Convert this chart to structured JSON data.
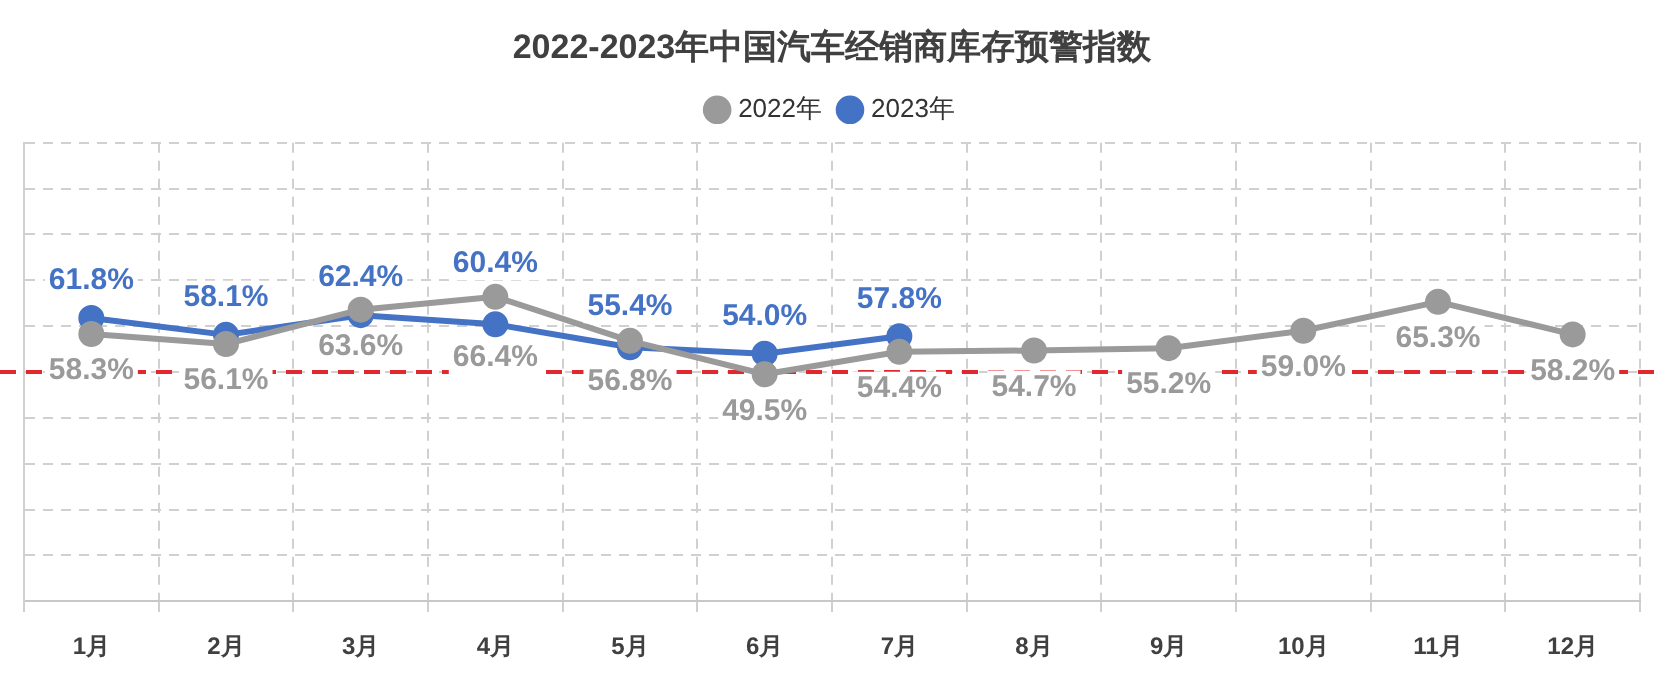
{
  "chart_data": {
    "type": "line",
    "title": "2022-2023年中国汽车经销商库存预警指数",
    "categories": [
      "1月",
      "2月",
      "3月",
      "4月",
      "5月",
      "6月",
      "7月",
      "8月",
      "9月",
      "10月",
      "11月",
      "12月"
    ],
    "series": [
      {
        "name": "2022年",
        "color": "#9a9a9a",
        "values": [
          58.3,
          56.1,
          63.6,
          66.4,
          56.8,
          49.5,
          54.4,
          54.7,
          55.2,
          59.0,
          65.3,
          58.2
        ],
        "value_labels": [
          "58.3%",
          "56.1%",
          "63.6%",
          "66.4%",
          "56.8%",
          "49.5%",
          "54.4%",
          "54.7%",
          "55.2%",
          "59.0%",
          "65.3%",
          "58.2%"
        ]
      },
      {
        "name": "2023年",
        "color": "#4472c4",
        "values": [
          61.8,
          58.1,
          62.4,
          60.4,
          55.4,
          54.0,
          57.8,
          null,
          null,
          null,
          null,
          null
        ],
        "value_labels": [
          "61.8%",
          "58.1%",
          "62.4%",
          "60.4%",
          "55.4%",
          "54.0%",
          "57.8%",
          null,
          null,
          null,
          null,
          null
        ]
      }
    ],
    "ylim": [
      0,
      100
    ],
    "yticks": [
      {
        "value": 0,
        "label": null
      },
      {
        "value": 10,
        "label": null
      },
      {
        "value": 20,
        "label": null
      },
      {
        "value": 30,
        "label": null
      },
      {
        "value": 40,
        "label": null
      },
      {
        "value": 50,
        "label": null
      },
      {
        "value": 60,
        "label": null
      },
      {
        "value": 70,
        "label": null
      },
      {
        "value": 80,
        "label": null
      },
      {
        "value": 90,
        "label": null
      },
      {
        "value": 100,
        "label": null
      }
    ],
    "tick_labels": "x",
    "ref_lines": [
      {
        "axis": "y",
        "value": 50,
        "color": "#e0282e",
        "line_style": "dashed"
      }
    ],
    "grid": true,
    "legend": "top",
    "marker": "circle",
    "line_style": "solid"
  }
}
